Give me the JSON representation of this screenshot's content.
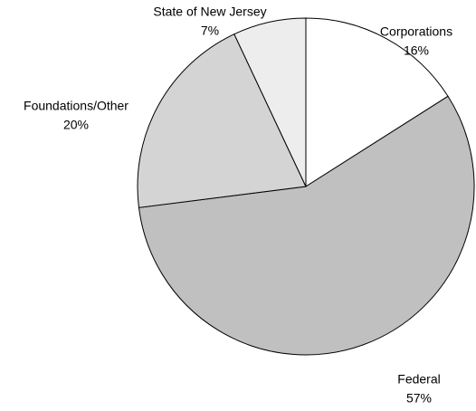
{
  "chart_data": {
    "type": "pie",
    "categories": [
      "Corporations",
      "Federal",
      "Foundations/Other",
      "State of New Jersey"
    ],
    "values": [
      16,
      57,
      20,
      7
    ],
    "value_labels": [
      "16%",
      "57%",
      "20%",
      "7%"
    ],
    "colors": [
      "#ffffff",
      "#c0c0c0",
      "#d4d4d4",
      "#ededed"
    ]
  }
}
